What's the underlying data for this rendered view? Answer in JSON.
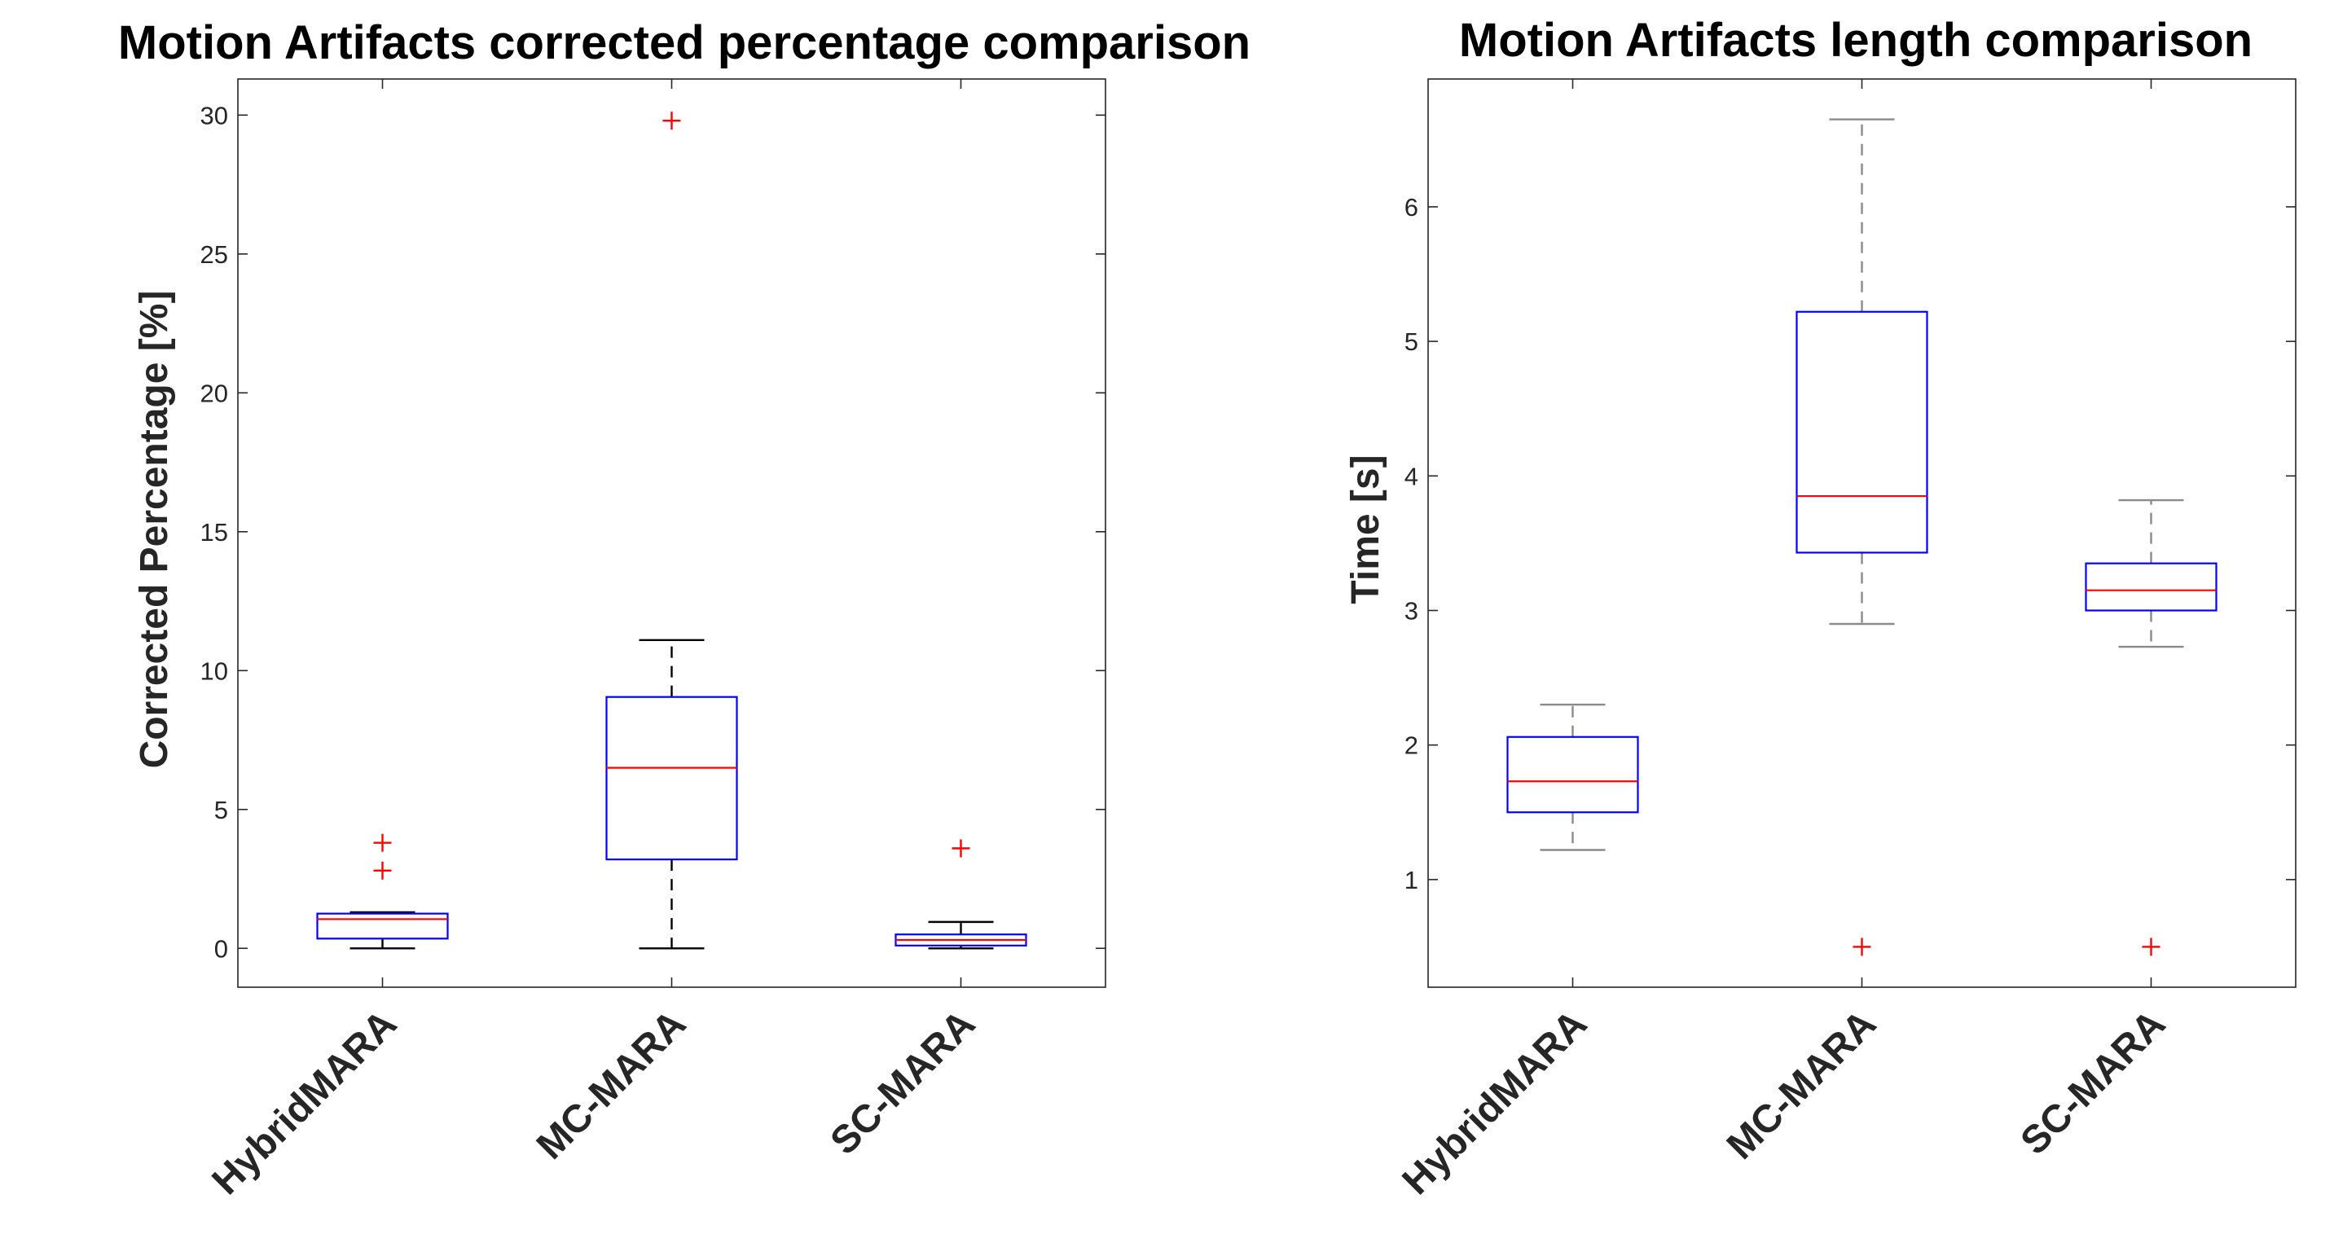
{
  "colors": {
    "box": "#0000ff",
    "median": "#ff0000",
    "outlier": "#ff0000",
    "whisker_left": "#000000",
    "whisker_right": "#8a8a8a",
    "axis": "#262626"
  },
  "chart_data": [
    {
      "type": "boxplot",
      "title": "Motion Artifacts corrected percentage comparison",
      "xlabel": "",
      "ylabel": "Corrected Percentage [%]",
      "ylim": [
        -1.4,
        31.3
      ],
      "yticks": [
        0,
        5,
        10,
        15,
        20,
        25,
        30
      ],
      "categories": [
        "HybridMARA",
        "MC-MARA",
        "SC-MARA"
      ],
      "boxes": [
        {
          "name": "HybridMARA",
          "whisker_low": 0.0,
          "q1": 0.35,
          "median": 1.05,
          "q3": 1.25,
          "whisker_high": 1.3,
          "outliers": [
            2.8,
            3.8
          ]
        },
        {
          "name": "MC-MARA",
          "whisker_low": 0.0,
          "q1": 3.2,
          "median": 6.5,
          "q3": 9.05,
          "whisker_high": 11.1,
          "outliers": [
            29.8
          ]
        },
        {
          "name": "SC-MARA",
          "whisker_low": 0.0,
          "q1": 0.1,
          "median": 0.3,
          "q3": 0.5,
          "whisker_high": 0.95,
          "outliers": [
            3.6
          ]
        }
      ]
    },
    {
      "type": "boxplot",
      "title": "Motion Artifacts length comparison",
      "xlabel": "",
      "ylabel": "Time [s]",
      "ylim": [
        0.2,
        6.95
      ],
      "yticks": [
        1,
        2,
        3,
        4,
        5,
        6
      ],
      "categories": [
        "HybridMARA",
        "MC-MARA",
        "SC-MARA"
      ],
      "boxes": [
        {
          "name": "HybridMARA",
          "whisker_low": 1.22,
          "q1": 1.5,
          "median": 1.73,
          "q3": 2.06,
          "whisker_high": 2.3,
          "outliers": []
        },
        {
          "name": "MC-MARA",
          "whisker_low": 2.9,
          "q1": 3.43,
          "median": 3.85,
          "q3": 5.22,
          "whisker_high": 6.65,
          "outliers": [
            0.5
          ]
        },
        {
          "name": "SC-MARA",
          "whisker_low": 2.73,
          "q1": 3.0,
          "median": 3.15,
          "q3": 3.35,
          "whisker_high": 3.82,
          "outliers": [
            0.5
          ]
        }
      ]
    }
  ]
}
